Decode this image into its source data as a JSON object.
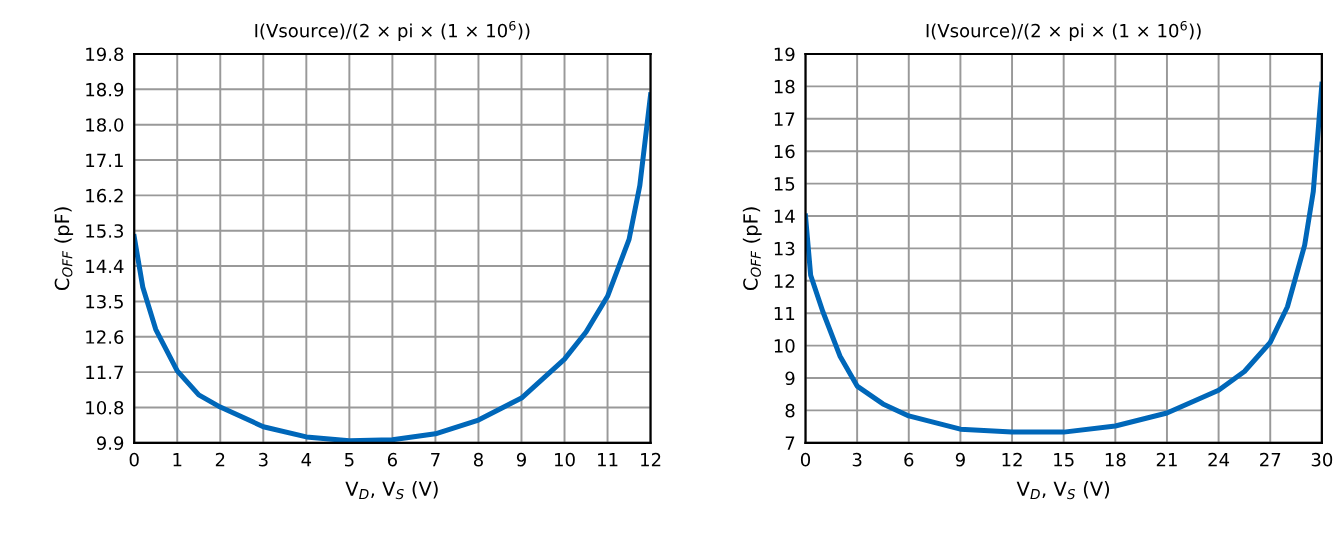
{
  "chart_data": [
    {
      "type": "line",
      "title": "I(Vsource)/(2 × pi × (1 × 10$^{6}$))",
      "xlabel": "V$_{D}$, V$_{S}$ (V)",
      "ylabel": "C$_{OFF}$ (pF)",
      "x": [
        0,
        0.2,
        0.5,
        1,
        1.5,
        2,
        3,
        4,
        5,
        6,
        7,
        8,
        9,
        10,
        10.5,
        11,
        11.5,
        11.75,
        12
      ],
      "series": [
        {
          "color": "#0067b9",
          "values": [
            15.15,
            13.86,
            12.79,
            11.73,
            11.12,
            10.81,
            10.31,
            10.05,
            9.95,
            9.98,
            10.13,
            10.48,
            11.04,
            12.03,
            12.72,
            13.63,
            15.08,
            16.45,
            18.76
          ]
        }
      ],
      "xlim": [
        0,
        12
      ],
      "xticks": [
        0,
        1,
        2,
        3,
        4,
        5,
        6,
        7,
        8,
        9,
        10,
        11,
        12
      ],
      "ylim": [
        9.9,
        19.8
      ],
      "yticks": [
        9.9,
        10.8,
        11.7,
        12.6,
        13.5,
        14.4,
        15.3,
        16.2,
        17.1,
        {
          "value": 18,
          "label": "18.0"
        },
        18.9,
        19.8
      ],
      "grid": true,
      "legend": false
    },
    {
      "type": "line",
      "title": "I(Vsource)/(2 × pi × (1 × 10$^{6}$))",
      "xlabel": "V$_{D}$, V$_{S}$ (V)",
      "ylabel": "C$_{OFF}$ (pF)",
      "x": [
        0,
        0.3,
        1,
        2,
        3,
        4.5,
        6,
        9,
        12,
        15,
        18,
        21,
        24,
        25.5,
        27,
        28,
        29,
        29.5,
        30
      ],
      "series": [
        {
          "color": "#0067b9",
          "values": [
            14.0,
            12.17,
            11.06,
            9.68,
            8.75,
            8.2,
            7.83,
            7.42,
            7.33,
            7.33,
            7.52,
            7.92,
            8.62,
            9.2,
            10.1,
            11.2,
            13.1,
            14.75,
            18.07
          ]
        }
      ],
      "xlim": [
        0,
        30
      ],
      "xticks": [
        0,
        3,
        6,
        9,
        12,
        15,
        18,
        21,
        24,
        27,
        30
      ],
      "ylim": [
        7,
        19
      ],
      "yticks": [
        7,
        8,
        9,
        10,
        11,
        12,
        13,
        14,
        15,
        16,
        17,
        18,
        19
      ],
      "grid": true,
      "legend": false
    }
  ]
}
